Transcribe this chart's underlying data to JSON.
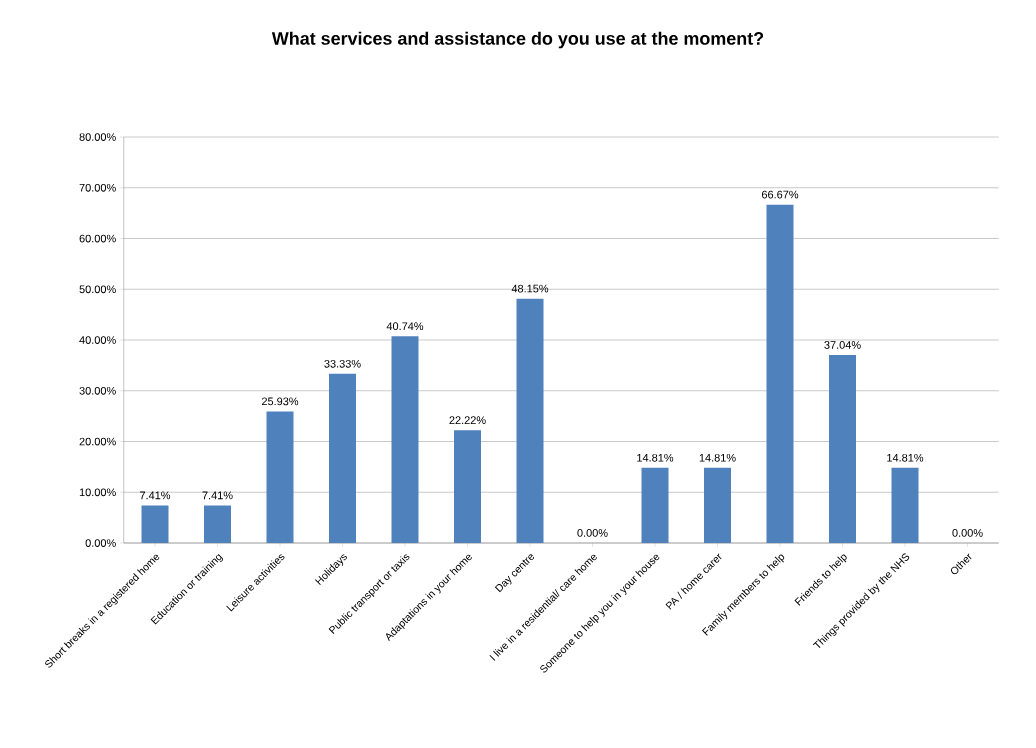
{
  "chart_data": {
    "type": "bar",
    "title": "What services and assistance do you use at the moment?",
    "categories": [
      "Short breaks in a registered home",
      "Education or training",
      "Leisure activities",
      "Holidays",
      "Public transport or taxis",
      "Adaptations in your home",
      "Day centre",
      "I live in a residential/ care home",
      "Someone to help you in your house",
      "PA / home carer",
      "Family members to help",
      "Friends to help",
      "Things provided by the NHS",
      "Other"
    ],
    "values": [
      7.41,
      7.41,
      25.93,
      33.33,
      40.74,
      22.22,
      48.15,
      0,
      14.81,
      14.81,
      66.67,
      37.04,
      14.81,
      0
    ],
    "value_labels": [
      "7.41%",
      "7.41%",
      "25.93%",
      "33.33%",
      "40.74%",
      "22.22%",
      "48.15%",
      "0.00%",
      "14.81%",
      "14.81%",
      "66.67%",
      "37.04%",
      "14.81%",
      "0.00%"
    ],
    "color": "#4f81bd",
    "ylim": [
      0,
      80
    ],
    "yticks": [
      {
        "value": 0,
        "label": "0.00%"
      },
      {
        "value": 10,
        "label": "10.00%"
      },
      {
        "value": 20,
        "label": "20.00%"
      },
      {
        "value": 30,
        "label": "30.00%"
      },
      {
        "value": 40,
        "label": "40.00%"
      },
      {
        "value": 50,
        "label": "50.00%"
      },
      {
        "value": 60,
        "label": "60.00%"
      },
      {
        "value": 70,
        "label": "70.00%"
      },
      {
        "value": 80,
        "label": "80.00%"
      }
    ],
    "grid": "y"
  }
}
